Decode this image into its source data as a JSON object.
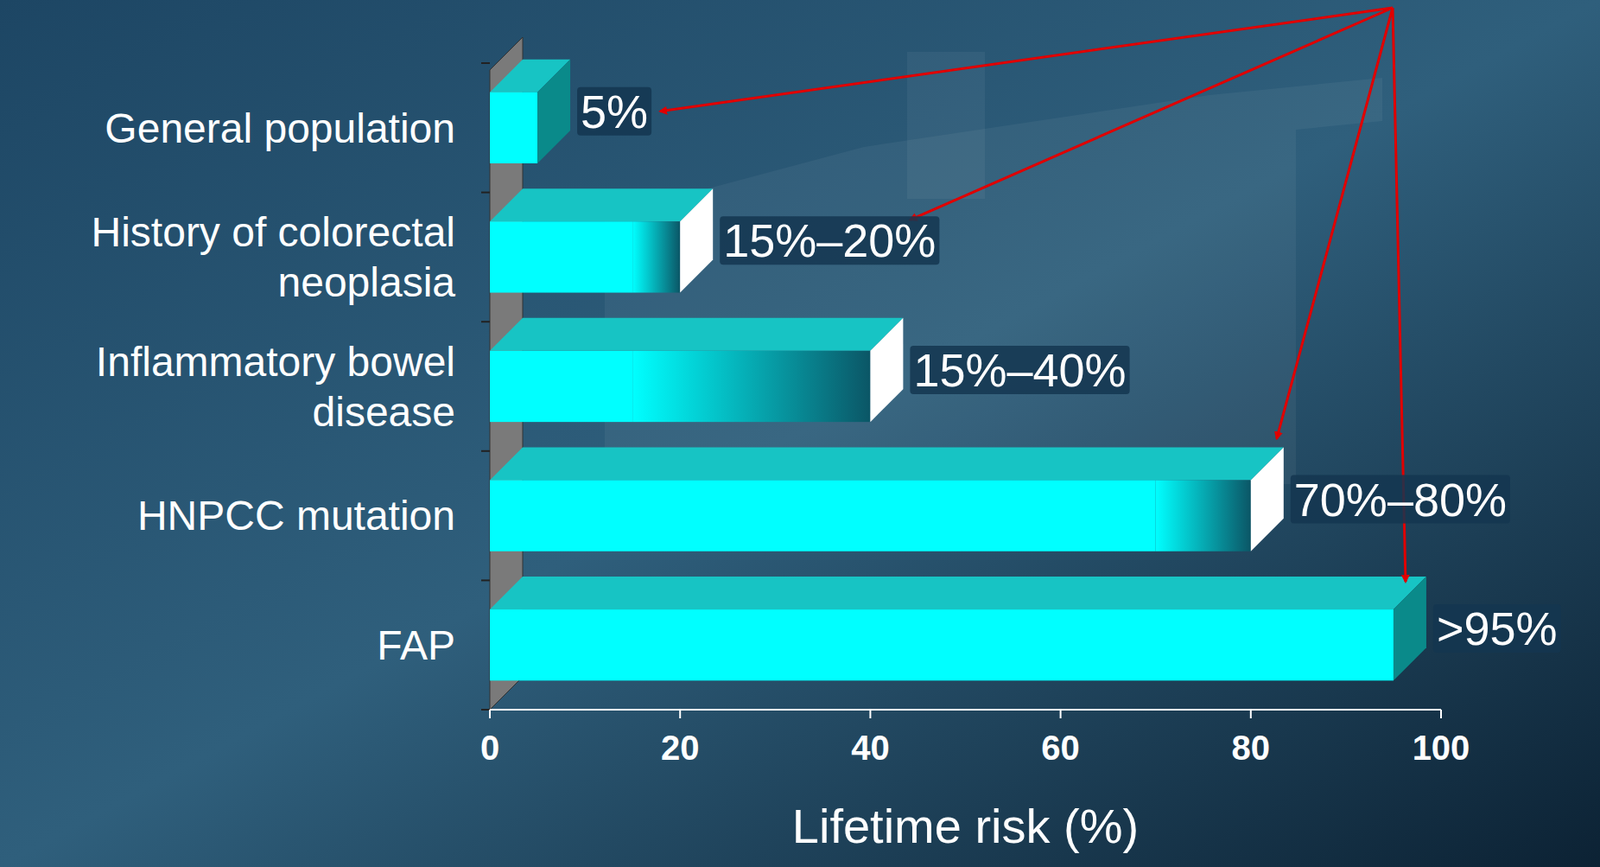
{
  "chart_data": {
    "type": "bar",
    "orientation": "horizontal",
    "categories": [
      "General population",
      "History of colorectal neoplasia",
      "Inflammatory bowel disease",
      "HNPCC mutation",
      "FAP"
    ],
    "values": [
      5,
      20,
      40,
      80,
      95
    ],
    "range_low": [
      null,
      15,
      15,
      70,
      null
    ],
    "value_labels": [
      "5%",
      "15%–20%",
      "15%–40%",
      "70%–80%",
      ">95%"
    ],
    "data_labels": true,
    "xlim": [
      0,
      100
    ],
    "xticks": [
      0,
      20,
      40,
      60,
      80,
      100
    ],
    "x_label": "Lifetime risk (%)",
    "color": "#00ffff",
    "grid": false
  }
}
